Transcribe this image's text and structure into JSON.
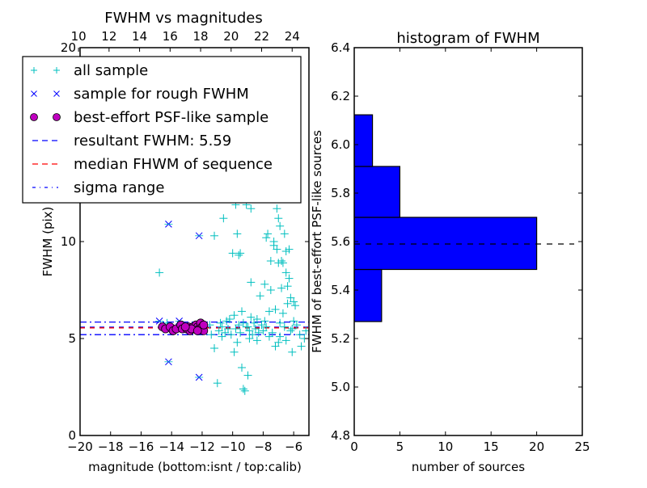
{
  "chart_data": [
    {
      "type": "scatter",
      "title": "FWHM vs magnitudes",
      "xlabel": "magnitude (bottom:isnt / top:calib)",
      "ylabel": "FWHM (pix)",
      "xlim": [
        -20,
        -5
      ],
      "ylim": [
        0,
        20
      ],
      "x_ticks": [
        -20,
        -18,
        -16,
        -14,
        -12,
        -10,
        -8,
        -6
      ],
      "x_tick_labels": [
        "−20",
        "−18",
        "−16",
        "−14",
        "−12",
        "−10",
        "−8",
        "−6"
      ],
      "y_ticks": [
        0,
        5,
        10,
        20
      ],
      "y_tick_labels": [
        "0",
        "5",
        "10",
        "20"
      ],
      "top_axis": {
        "label_offset": 30.1,
        "ticks": [
          10,
          12,
          14,
          16,
          18,
          20,
          22,
          24
        ],
        "tick_labels": [
          "10",
          "12",
          "14",
          "16",
          "18",
          "20",
          "22",
          "24"
        ]
      },
      "grid": false,
      "legend_position": "top-left",
      "legend": [
        {
          "label": "all sample",
          "marker": "plus",
          "color": "#00bfbf"
        },
        {
          "label": "sample for rough FWHM",
          "marker": "x",
          "color": "#0000ff"
        },
        {
          "label": "best-effort PSF-like sample",
          "marker": "circle",
          "color": "#bf00bf"
        },
        {
          "label": "resultant FWHM: 5.59",
          "marker": "dashed-line",
          "color": "#0000ff"
        },
        {
          "label": "median FHWM of sequence",
          "marker": "dashed-line",
          "color": "#ff0000"
        },
        {
          "label": "sigma range",
          "marker": "dashdot-line",
          "color": "#0000ff"
        }
      ],
      "hlines": [
        {
          "name": "resultant FWHM",
          "y": 5.59,
          "style": "dashed",
          "color": "#0000ff"
        },
        {
          "name": "median FWHM",
          "y": 5.55,
          "style": "dashed",
          "color": "#ff0000"
        },
        {
          "name": "sigma upper",
          "y": 5.85,
          "style": "dashdot",
          "color": "#0000ff"
        },
        {
          "name": "sigma lower",
          "y": 5.2,
          "style": "dashdot",
          "color": "#0000ff"
        }
      ],
      "series": [
        {
          "name": "all sample",
          "marker": "plus",
          "color": "#00bfbf",
          "points": [
            [
              -14.8,
              8.4
            ],
            [
              -14.3,
              5.8
            ],
            [
              -12.0,
              5.5
            ],
            [
              -11.5,
              5.7
            ],
            [
              -11.2,
              10.3
            ],
            [
              -11.2,
              4.5
            ],
            [
              -11.0,
              2.7
            ],
            [
              -10.9,
              5.4
            ],
            [
              -10.7,
              5.6
            ],
            [
              -10.6,
              11.2
            ],
            [
              -10.5,
              5.3
            ],
            [
              -10.4,
              5.9
            ],
            [
              -10.3,
              5.5
            ],
            [
              -10.2,
              6.0
            ],
            [
              -10.1,
              5.2
            ],
            [
              -10.0,
              9.4
            ],
            [
              -9.9,
              4.3
            ],
            [
              -9.9,
              6.2
            ],
            [
              -9.8,
              5.5
            ],
            [
              -9.8,
              11.9
            ],
            [
              -9.7,
              10.4
            ],
            [
              -9.6,
              5.7
            ],
            [
              -9.6,
              9.3
            ],
            [
              -9.5,
              9.4
            ],
            [
              -9.5,
              5.3
            ],
            [
              -9.4,
              3.5
            ],
            [
              -9.3,
              2.4
            ],
            [
              -9.3,
              5.8
            ],
            [
              -9.2,
              2.3
            ],
            [
              -9.1,
              11.9
            ],
            [
              -9.0,
              3.1
            ],
            [
              -9.0,
              5.6
            ],
            [
              -8.9,
              5.4
            ],
            [
              -8.8,
              11.7
            ],
            [
              -8.8,
              7.9
            ],
            [
              -8.7,
              5.2
            ],
            [
              -8.6,
              5.8
            ],
            [
              -8.5,
              5.5
            ],
            [
              -8.4,
              6.0
            ],
            [
              -8.3,
              5.3
            ],
            [
              -8.2,
              7.2
            ],
            [
              -8.1,
              5.7
            ],
            [
              -8.0,
              5.4
            ],
            [
              -7.9,
              7.8
            ],
            [
              -7.8,
              10.2
            ],
            [
              -7.8,
              5.6
            ],
            [
              -7.7,
              10.4
            ],
            [
              -7.6,
              6.4
            ],
            [
              -7.5,
              9.0
            ],
            [
              -7.5,
              7.5
            ],
            [
              -7.4,
              5.3
            ],
            [
              -7.3,
              9.8
            ],
            [
              -7.3,
              10.0
            ],
            [
              -7.2,
              6.5
            ],
            [
              -7.1,
              9.6
            ],
            [
              -7.1,
              11.7
            ],
            [
              -7.0,
              8.9
            ],
            [
              -7.0,
              11.2
            ],
            [
              -6.9,
              10.8
            ],
            [
              -6.9,
              5.8
            ],
            [
              -6.8,
              7.6
            ],
            [
              -6.8,
              9.0
            ],
            [
              -6.7,
              8.9
            ],
            [
              -6.7,
              6.3
            ],
            [
              -6.6,
              10.4
            ],
            [
              -6.6,
              5.6
            ],
            [
              -6.5,
              9.5
            ],
            [
              -6.5,
              8.4
            ],
            [
              -6.4,
              7.7
            ],
            [
              -6.4,
              6.8
            ],
            [
              -6.3,
              9.6
            ],
            [
              -6.3,
              8.1
            ],
            [
              -6.2,
              7.1
            ],
            [
              -6.2,
              5.4
            ],
            [
              -6.1,
              4.3
            ],
            [
              -6.0,
              6.9
            ],
            [
              -6.0,
              5.9
            ],
            [
              -5.9,
              6.7
            ],
            [
              -5.8,
              5.7
            ],
            [
              -5.5,
              4.6
            ],
            [
              -5.3,
              5.0
            ],
            [
              -5.2,
              5.4
            ],
            [
              -6.9,
              5.1
            ],
            [
              -7.0,
              4.8
            ],
            [
              -7.6,
              5.1
            ],
            [
              -8.4,
              4.9
            ],
            [
              -8.9,
              5.0
            ],
            [
              -9.7,
              4.8
            ],
            [
              -10.7,
              5.1
            ],
            [
              -11.4,
              5.2
            ],
            [
              -6.5,
              4.9
            ],
            [
              -7.2,
              4.6
            ],
            [
              -5.6,
              5.2
            ],
            [
              -6.1,
              5.5
            ],
            [
              -7.9,
              5.9
            ],
            [
              -8.8,
              6.1
            ],
            [
              -9.4,
              6.4
            ],
            [
              -9.1,
              5.6
            ],
            [
              -10.8,
              5.8
            ]
          ]
        },
        {
          "name": "sample for rough FWHM",
          "marker": "x",
          "color": "#0000ff",
          "points": [
            [
              -14.8,
              5.9
            ],
            [
              -14.2,
              10.9
            ],
            [
              -12.2,
              10.3
            ],
            [
              -13.5,
              5.9
            ],
            [
              -14.2,
              3.8
            ],
            [
              -12.2,
              3.0
            ]
          ]
        },
        {
          "name": "best-effort PSF-like sample",
          "marker": "circle",
          "color": "#bf00bf",
          "points": [
            [
              -14.6,
              5.6
            ],
            [
              -14.4,
              5.5
            ],
            [
              -14.1,
              5.6
            ],
            [
              -13.9,
              5.4
            ],
            [
              -13.7,
              5.5
            ],
            [
              -13.4,
              5.7
            ],
            [
              -13.3,
              5.5
            ],
            [
              -13.0,
              5.5
            ],
            [
              -12.9,
              5.6
            ],
            [
              -12.8,
              5.4
            ],
            [
              -12.6,
              5.6
            ],
            [
              -12.5,
              5.5
            ],
            [
              -12.4,
              5.7
            ],
            [
              -12.3,
              5.6
            ],
            [
              -12.2,
              5.5
            ],
            [
              -12.1,
              5.8
            ],
            [
              -12.0,
              5.6
            ],
            [
              -11.9,
              5.4
            ],
            [
              -12.7,
              5.5
            ],
            [
              -12.3,
              5.4
            ],
            [
              -13.1,
              5.6
            ],
            [
              -11.9,
              5.7
            ]
          ]
        }
      ]
    },
    {
      "type": "bar",
      "orientation": "horizontal",
      "title": "histogram of FWHM",
      "xlabel": "number of sources",
      "ylabel": "FWHM of best-effort PSF-like sources",
      "xlim": [
        0,
        25
      ],
      "ylim": [
        4.8,
        6.4
      ],
      "x_ticks": [
        0,
        5,
        10,
        15,
        20,
        25
      ],
      "x_tick_labels": [
        "0",
        "5",
        "10",
        "15",
        "20",
        "25"
      ],
      "y_ticks": [
        4.8,
        5.0,
        5.2,
        5.4,
        5.6,
        5.8,
        6.0,
        6.2,
        6.4
      ],
      "y_tick_labels": [
        "4.8",
        "5.0",
        "5.2",
        "5.4",
        "5.6",
        "5.8",
        "6.0",
        "6.2",
        "6.4"
      ],
      "grid": false,
      "bins": [
        {
          "from": 5.27,
          "to": 5.485,
          "count": 3
        },
        {
          "from": 5.485,
          "to": 5.7,
          "count": 20
        },
        {
          "from": 5.7,
          "to": 5.91,
          "count": 5
        },
        {
          "from": 5.91,
          "to": 6.123,
          "count": 2
        }
      ],
      "bar_color": "#0000ff",
      "hline": {
        "y": 5.59,
        "style": "dashed",
        "color": "#000000"
      }
    }
  ]
}
